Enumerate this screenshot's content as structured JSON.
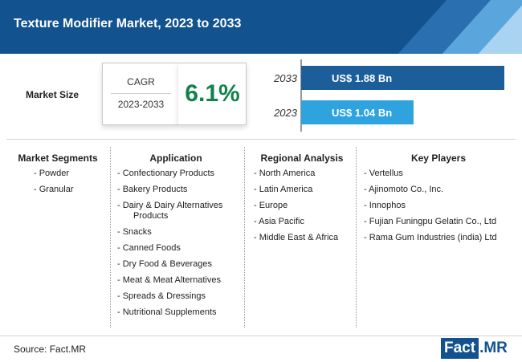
{
  "header": {
    "title": "Texture Modifier Market, 2023 to 2033"
  },
  "market_size": {
    "label": "Market Size",
    "cagr_label": "CAGR",
    "cagr_years": "2023-2033",
    "cagr_value": "6.1%"
  },
  "chart_data": {
    "type": "bar",
    "orientation": "horizontal",
    "categories": [
      "2033",
      "2023"
    ],
    "values": [
      1.88,
      1.04
    ],
    "labels": [
      "US$ 1.88 Bn",
      "US$ 1.04 Bn"
    ],
    "colors": [
      "#1b5e9a",
      "#2ea3dd"
    ],
    "title": "",
    "xlabel": "",
    "ylabel": "",
    "xlim": [
      0,
      2.0
    ]
  },
  "columns": {
    "segments": {
      "title": "Market Segments",
      "items": [
        "- Powder",
        "- Granular"
      ]
    },
    "application": {
      "title": "Application",
      "items": [
        "- Confectionary Products",
        "- Bakery Products",
        "- Dairy & Dairy Alternatives",
        "Products",
        "- Snacks",
        "- Canned Foods",
        "- Dry Food & Beverages",
        "- Meat & Meat Alternatives",
        "- Spreads & Dressings",
        "- Nutritional Supplements"
      ]
    },
    "regional": {
      "title": "Regional Analysis",
      "items": [
        "- North America",
        "- Latin America",
        "- Europe",
        "- Asia Pacific",
        "- Middle East & Africa"
      ]
    },
    "players": {
      "title": "Key Players",
      "items": [
        "- Vertellus",
        "- Ajinomoto Co., Inc.",
        "- Innophos",
        "- Fujian Funingpu Gelatin Co., Ltd",
        "- Rama Gum Industries (india) Ltd"
      ]
    }
  },
  "footer": {
    "source": "Source: Fact.MR",
    "logo_fact": "Fact",
    "logo_mr": ".MR"
  }
}
